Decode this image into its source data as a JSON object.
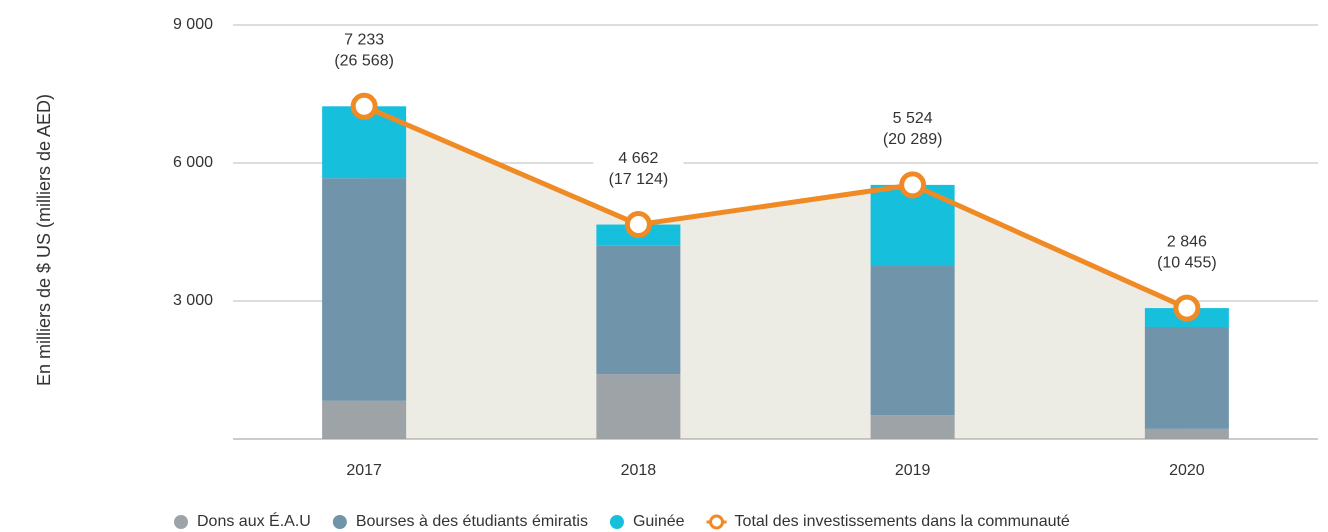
{
  "chart_data": {
    "type": "stacked-bar-line",
    "y_label": "En milliers de $ US (milliers de AED)",
    "categories": [
      "2017",
      "2018",
      "2019",
      "2020"
    ],
    "series": [
      {
        "name": "Dons aux É.A.U",
        "color": "#9ea3a8",
        "values": [
          830,
          1410,
          520,
          220
        ]
      },
      {
        "name": "Bourses à des étudiants émiratis",
        "color": "#7094aa",
        "values": [
          4840,
          2790,
          3240,
          2215
        ]
      },
      {
        "name": "Guinée",
        "color": "#16c0dc",
        "values": [
          1563,
          462,
          1764,
          411
        ]
      },
      {
        "name": "Total des investissements dans la communauté",
        "color": "#f08a24",
        "type": "line",
        "values": [
          7233,
          4662,
          5524,
          2846
        ],
        "value_labels": [
          "7 233",
          "4 662",
          "5 524",
          "2 846"
        ],
        "aed_labels": [
          "(26 568)",
          "(17 124)",
          "(20 289)",
          "(10 455)"
        ]
      }
    ],
    "area_color": "#ecebe4",
    "ylim": [
      0,
      9000
    ],
    "yticks": [
      {
        "value": 3000,
        "label": "3 000"
      },
      {
        "value": 6000,
        "label": "6 000"
      },
      {
        "value": 9000,
        "label": "9 000"
      }
    ],
    "grid": true,
    "legend": "bottom"
  }
}
